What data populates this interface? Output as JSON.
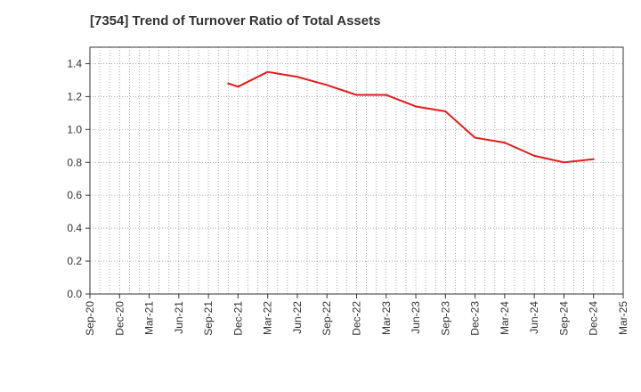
{
  "chart_data": {
    "type": "line",
    "title": "[7354]  Trend of Turnover Ratio of Total Assets",
    "xlabel": "",
    "ylabel": "",
    "categories": [
      "Sep-20",
      "Dec-20",
      "Mar-21",
      "Jun-21",
      "Sep-21",
      "Dec-21",
      "Mar-22",
      "Jun-22",
      "Sep-22",
      "Dec-22",
      "Mar-23",
      "Jun-23",
      "Sep-23",
      "Dec-23",
      "Mar-24",
      "Jun-24",
      "Sep-24",
      "Dec-24",
      "Mar-25"
    ],
    "x_tick_labels": [
      "Sep-20",
      "Dec-20",
      "Mar-21",
      "Jun-21",
      "Sep-21",
      "Dec-21",
      "Mar-22",
      "Jun-22",
      "Sep-22",
      "Dec-22",
      "Mar-23",
      "Jun-23",
      "Sep-23",
      "Dec-23",
      "Mar-24",
      "Jun-24",
      "Sep-24",
      "Dec-24",
      "Mar-25"
    ],
    "y_tick_labels": [
      "0.0",
      "0.2",
      "0.4",
      "0.6",
      "0.8",
      "1.0",
      "1.2",
      "1.4"
    ],
    "ylim": [
      0,
      1.5
    ],
    "grid": true,
    "series": [
      {
        "name": "",
        "color": "#e31a1c",
        "x": [
          "Nov-21",
          "Dec-21",
          "Mar-22",
          "Jun-22",
          "Sep-22",
          "Dec-22",
          "Mar-23",
          "Jun-23",
          "Sep-23",
          "Dec-23",
          "Mar-24",
          "Jun-24",
          "Sep-24",
          "Dec-24"
        ],
        "values": [
          1.28,
          1.26,
          1.35,
          1.32,
          1.27,
          1.21,
          1.21,
          1.14,
          1.11,
          0.95,
          0.92,
          0.84,
          0.8,
          0.82
        ]
      }
    ]
  }
}
